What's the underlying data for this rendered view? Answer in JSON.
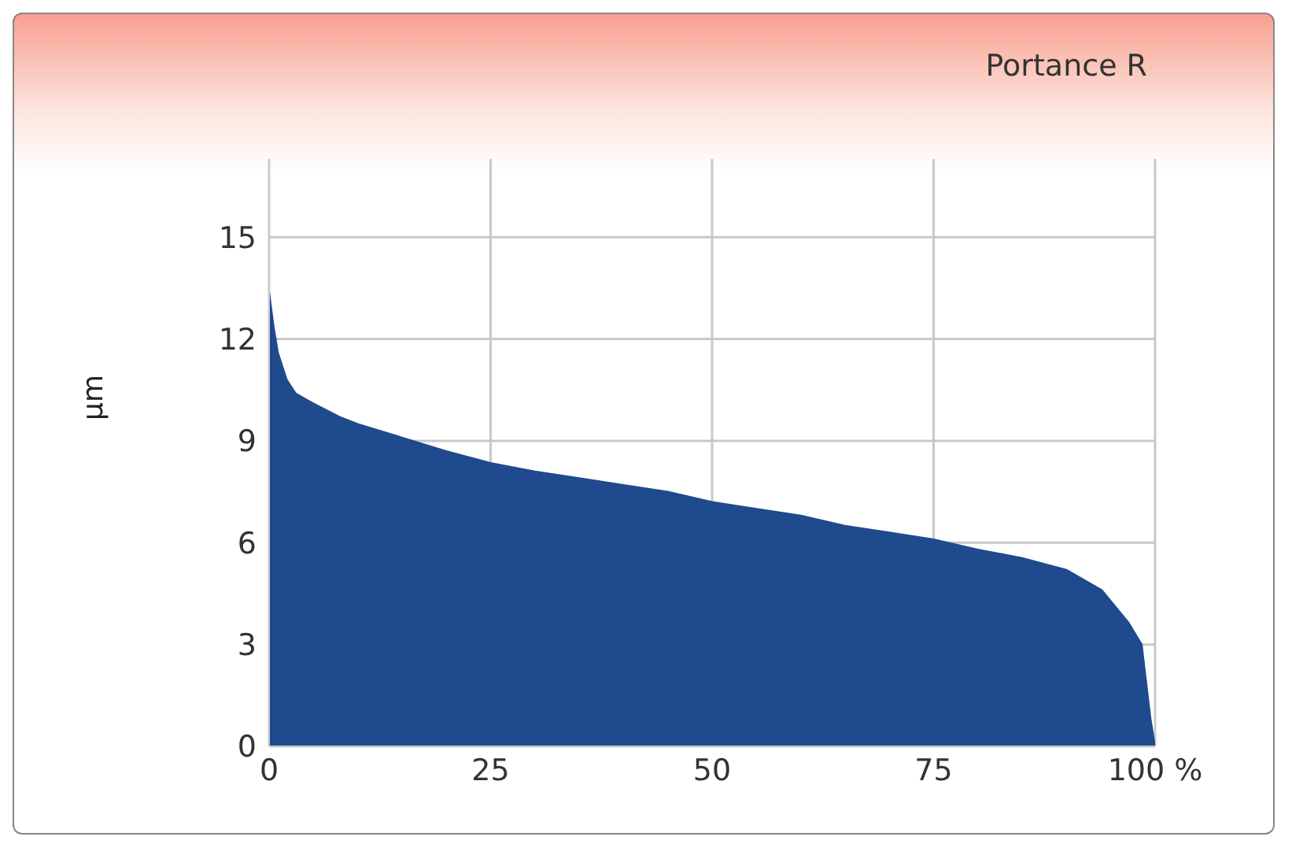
{
  "chart_data": {
    "type": "area",
    "title": "Portance R",
    "ylabel": "µm",
    "color": "#1f4b8e",
    "x": [
      0,
      0.5,
      1,
      2,
      3,
      5,
      8,
      10,
      15,
      20,
      25,
      30,
      35,
      40,
      45,
      50,
      55,
      60,
      65,
      70,
      75,
      80,
      85,
      90,
      94,
      97,
      98.5,
      99.5,
      100
    ],
    "values": [
      13.4,
      12.4,
      11.6,
      10.8,
      10.4,
      10.1,
      9.7,
      9.5,
      9.1,
      8.7,
      8.35,
      8.1,
      7.9,
      7.7,
      7.5,
      7.2,
      7.0,
      6.8,
      6.5,
      6.3,
      6.1,
      5.8,
      5.55,
      5.2,
      4.6,
      3.65,
      3.0,
      0.8,
      0
    ],
    "xlim": [
      0,
      100
    ],
    "xticks": [
      0,
      25,
      50,
      75,
      {
        "value": 100,
        "label": "100 %"
      }
    ],
    "ylim": [
      0,
      17.3
    ],
    "yticks": [
      0,
      3,
      6,
      9,
      12,
      15
    ],
    "grid": true
  }
}
